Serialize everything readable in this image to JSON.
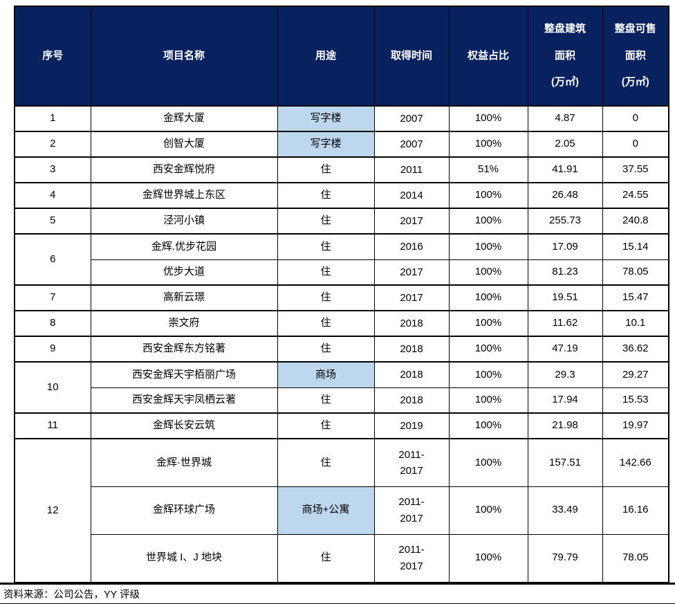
{
  "colors": {
    "header_bg": "#07225e",
    "header_text": "#ffffff",
    "highlight_bg": "#bdd7ee",
    "border": "#000000",
    "body_text": "#000000"
  },
  "table": {
    "headers": [
      {
        "id": "no",
        "label": "序号"
      },
      {
        "id": "name",
        "label": "项目名称"
      },
      {
        "id": "use",
        "label": "用途"
      },
      {
        "id": "time",
        "label": "取得时间"
      },
      {
        "id": "equity",
        "label": "权益占比"
      },
      {
        "id": "built-area",
        "lines": [
          "整盘建筑",
          "面积",
          "(万㎡)"
        ]
      },
      {
        "id": "sellable-area",
        "lines": [
          "整盘可售",
          "面积",
          "(万㎡)"
        ]
      }
    ],
    "rows": [
      {
        "no": "1",
        "no_rowspan": 1,
        "name": "金辉大厦",
        "use": "写字楼",
        "use_highlighted": true,
        "time": [
          "2007"
        ],
        "equity": "100%",
        "built_area": "4.87",
        "sellable_area": "0",
        "tall": false
      },
      {
        "no": "2",
        "no_rowspan": 1,
        "name": "创智大厦",
        "use": "写字楼",
        "use_highlighted": true,
        "time": [
          "2007"
        ],
        "equity": "100%",
        "built_area": "2.05",
        "sellable_area": "0",
        "tall": false
      },
      {
        "no": "3",
        "no_rowspan": 1,
        "name": "西安金辉悦府",
        "use": "住",
        "use_highlighted": false,
        "time": [
          "2011"
        ],
        "equity": "51%",
        "built_area": "41.91",
        "sellable_area": "37.55",
        "tall": false
      },
      {
        "no": "4",
        "no_rowspan": 1,
        "name": "金辉世界城上东区",
        "use": "住",
        "use_highlighted": false,
        "time": [
          "2014"
        ],
        "equity": "100%",
        "built_area": "26.48",
        "sellable_area": "24.55",
        "tall": false
      },
      {
        "no": "5",
        "no_rowspan": 1,
        "name": "泾河小镇",
        "use": "住",
        "use_highlighted": false,
        "time": [
          "2017"
        ],
        "equity": "100%",
        "built_area": "255.73",
        "sellable_area": "240.8",
        "tall": false
      },
      {
        "no": "6",
        "no_rowspan": 2,
        "name": "金辉.优步花园",
        "use": "住",
        "use_highlighted": false,
        "time": [
          "2016"
        ],
        "equity": "100%",
        "built_area": "17.09",
        "sellable_area": "15.14",
        "tall": false
      },
      {
        "name": "优步大道",
        "use": "住",
        "use_highlighted": false,
        "time": [
          "2017"
        ],
        "equity": "100%",
        "built_area": "81.23",
        "sellable_area": "78.05",
        "tall": false
      },
      {
        "no": "7",
        "no_rowspan": 1,
        "name": "高新云璟",
        "use": "住",
        "use_highlighted": false,
        "time": [
          "2017"
        ],
        "equity": "100%",
        "built_area": "19.51",
        "sellable_area": "15.47",
        "tall": false
      },
      {
        "no": "8",
        "no_rowspan": 1,
        "name": "崇文府",
        "use": "住",
        "use_highlighted": false,
        "time": [
          "2018"
        ],
        "equity": "100%",
        "built_area": "11.62",
        "sellable_area": "10.1",
        "tall": false
      },
      {
        "no": "9",
        "no_rowspan": 1,
        "name": "西安金辉东方铭著",
        "use": "住",
        "use_highlighted": false,
        "time": [
          "2018"
        ],
        "equity": "100%",
        "built_area": "47.19",
        "sellable_area": "36.62",
        "tall": false
      },
      {
        "no": "10",
        "no_rowspan": 2,
        "name": "西安金辉天宇栢丽广场",
        "use": "商场",
        "use_highlighted": true,
        "time": [
          "2018"
        ],
        "equity": "100%",
        "built_area": "29.3",
        "sellable_area": "29.27",
        "tall": false
      },
      {
        "name": "西安金辉天宇凤栖云著",
        "use": "住",
        "use_highlighted": false,
        "time": [
          "2018"
        ],
        "equity": "100%",
        "built_area": "17.94",
        "sellable_area": "15.53",
        "tall": false
      },
      {
        "no": "11",
        "no_rowspan": 1,
        "name": "金辉长安云筑",
        "use": "住",
        "use_highlighted": false,
        "time": [
          "2019"
        ],
        "equity": "100%",
        "built_area": "21.98",
        "sellable_area": "19.97",
        "tall": false
      },
      {
        "no": "12",
        "no_rowspan": 3,
        "name": "金辉·世界城",
        "use": "住",
        "use_highlighted": false,
        "time": [
          "2011-",
          "2017"
        ],
        "equity": "100%",
        "built_area": "157.51",
        "sellable_area": "142.66",
        "tall": true
      },
      {
        "name": "金辉环球广场",
        "use": "商场+公寓",
        "use_highlighted": true,
        "time": [
          "2011-",
          "2017"
        ],
        "equity": "100%",
        "built_area": "33.49",
        "sellable_area": "16.16",
        "tall": true
      },
      {
        "name": "世界城 I、J 地块",
        "use": "住",
        "use_highlighted": false,
        "time": [
          "2011-",
          "2017"
        ],
        "equity": "100%",
        "built_area": "79.79",
        "sellable_area": "78.05",
        "tall": true
      }
    ]
  },
  "footer": {
    "source": "资料来源：公司公告，YY 评级"
  }
}
